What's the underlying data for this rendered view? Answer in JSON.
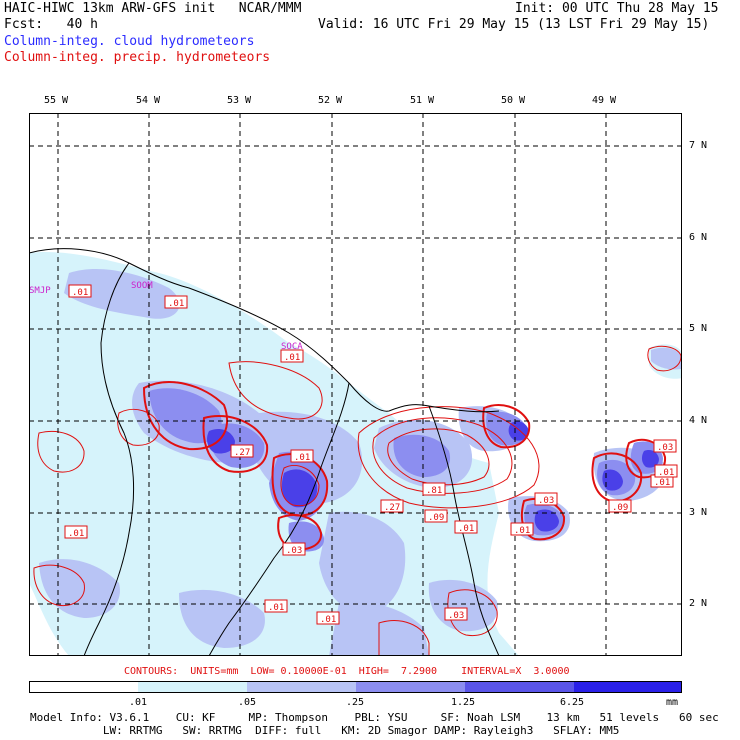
{
  "header": {
    "title_left": "HAIC-HIWC 13km ARW-GFS init   NCAR/MMM",
    "init": "Init: 00 UTC Thu 28 May 15",
    "fcst": "Fcst:   40 h",
    "valid": "Valid: 16 UTC Fri 29 May 15 (13 LST Fri 29 May 15)",
    "field_cloud": "Column-integ. cloud hydrometeors",
    "field_precip": "Column-integ. precip. hydrometeors"
  },
  "colors": {
    "cloud_label": "#2b2bff",
    "precip_label": "#e01010",
    "contour": "#e01010",
    "station": "#cc22cc",
    "fill_levels": [
      "#ffffff",
      "#d6f3fb",
      "#b8c4f5",
      "#8c8ef0",
      "#5a55e8",
      "#2a20e8"
    ]
  },
  "map": {
    "lon_labels": [
      "55 W",
      "54 W",
      "53 W",
      "52 W",
      "51 W",
      "50 W",
      "49 W"
    ],
    "lat_labels": [
      "7 N",
      "6 N",
      "5 N",
      "4 N",
      "3 N",
      "2 N"
    ],
    "stations": [
      "SMJP",
      "SOOM",
      "SOCA"
    ],
    "contour_labels": [
      ".01",
      ".01",
      ".01",
      ".27",
      ".01",
      ".01",
      ".27",
      ".81",
      ".09",
      ".01",
      ".01",
      ".03",
      ".03",
      ".09",
      ".01",
      ".03",
      ".01",
      ".01",
      ".03",
      ".01"
    ]
  },
  "legend": {
    "contours_line": "CONTOURS:  UNITS=mm  LOW= 0.10000E-01  HIGH=  7.2900    INTERVAL=X  3.0000",
    "ticks": [
      ".01",
      ".05",
      ".25",
      "1.25",
      "6.25"
    ],
    "unit": "mm"
  },
  "model_info": {
    "line1": "Model Info: V3.6.1    CU: KF     MP: Thompson    PBL: YSU     SF: Noah LSM    13 km   51 levels   60 sec",
    "line2": "           LW: RRTMG   SW: RRTMG  DIFF: full   KM: 2D Smagor DAMP: Rayleigh3   SFLAY: MM5"
  }
}
